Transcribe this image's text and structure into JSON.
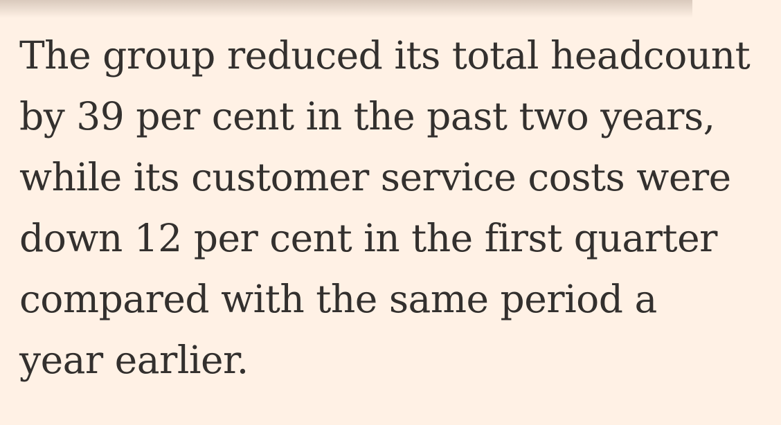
{
  "article": {
    "paragraph_lines": [
      "The group reduced its total headcount",
      "by 39 per cent in the past two years,",
      "while its customer service costs were",
      "down 12 per cent in the first quarter",
      "compared with the same period a",
      "year earlier."
    ]
  },
  "colors": {
    "background": "#fff1e5",
    "text": "#33302e"
  }
}
